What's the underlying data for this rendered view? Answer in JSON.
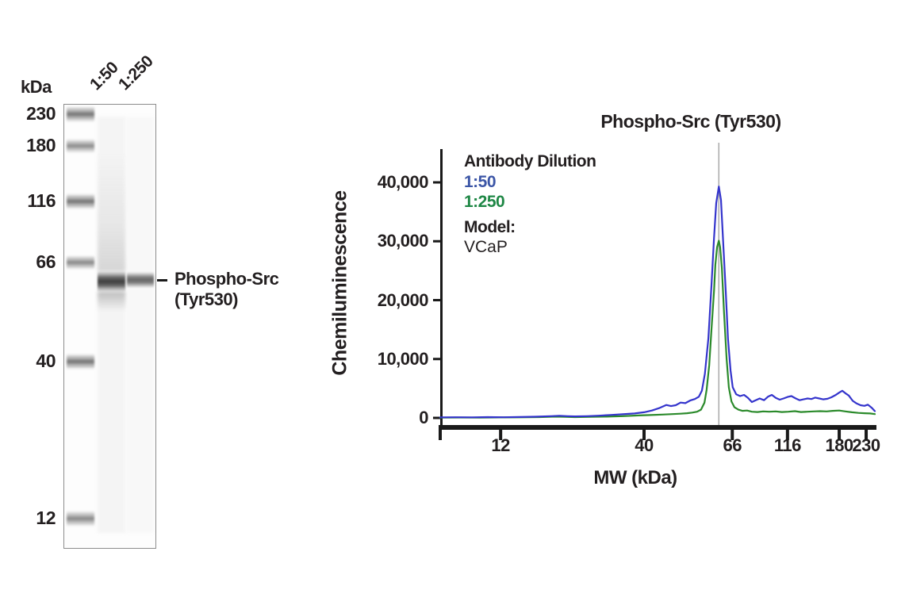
{
  "colors": {
    "text": "#231f20",
    "axis": "#1a1a1a",
    "peak_guide_line": "#ADADAD",
    "blot_border": "#8c8c8c",
    "line_blue": "#3434CC",
    "line_green": "#2B8A2B",
    "legend_blue": "#3B55A6",
    "legend_green": "#1E8745"
  },
  "blot": {
    "kda_heading": "kDa",
    "marker_bands": [
      {
        "label": "230",
        "y": 143,
        "h": 20,
        "shade": 0.7
      },
      {
        "label": "180",
        "y": 183,
        "h": 18,
        "shade": 0.58
      },
      {
        "label": "116",
        "y": 253,
        "h": 20,
        "shade": 0.7
      },
      {
        "label": "66",
        "y": 330,
        "h": 18,
        "shade": 0.6
      },
      {
        "label": "40",
        "y": 455,
        "h": 20,
        "shade": 0.7
      },
      {
        "label": "12",
        "y": 653,
        "h": 20,
        "shade": 0.6
      }
    ],
    "lanes": [
      {
        "label": "1:50",
        "band_y": 354,
        "band_h": 26,
        "shade": 0.88,
        "anchor_x": 126,
        "smear": true
      },
      {
        "label": "1:250",
        "band_y": 352,
        "band_h": 20,
        "shade": 0.7,
        "anchor_x": 162,
        "smear": false
      }
    ],
    "annotation": {
      "line1": "Phospho-Src",
      "line2": "(Tyr530)"
    }
  },
  "chart": {
    "title": "Phospho-Src (Tyr530)",
    "xlabel": "MW (kDa)",
    "ylabel": "Chemiluminescence",
    "legend": {
      "heading": "Antibody Dilution",
      "model_heading": "Model:",
      "model_value": "VCaP"
    }
  },
  "chart_data": {
    "type": "line",
    "title": "Phospho-Src (Tyr530)",
    "xlabel": "MW (kDa)",
    "ylabel": "Chemiluminescence",
    "grid": false,
    "legend_position": "upper-left",
    "x_axis": {
      "type": "nonlinear-position",
      "unit": "kDa",
      "ticks": [
        {
          "label": "12",
          "pos": 0.139
        },
        {
          "label": "40",
          "pos": 0.469
        },
        {
          "label": "66",
          "pos": 0.672
        },
        {
          "label": "116",
          "pos": 0.799
        },
        {
          "label": "180",
          "pos": 0.918
        },
        {
          "label": "230",
          "pos": 0.98
        }
      ]
    },
    "y_axis": {
      "min": 0,
      "max": 46000,
      "ticks": [
        {
          "label": "0",
          "value": 0
        },
        {
          "label": "10,000",
          "value": 10000
        },
        {
          "label": "20,000",
          "value": 20000
        },
        {
          "label": "30,000",
          "value": 30000
        },
        {
          "label": "40,000",
          "value": 40000
        }
      ]
    },
    "peak_line_pos": 0.641,
    "peak_mw_kda": 60,
    "series": [
      {
        "name": "1:50",
        "color": "#3434CC",
        "legend_color": "#3B55A6",
        "peak_value": 39300,
        "points": [
          [
            0,
            100
          ],
          [
            0.036,
            110
          ],
          [
            0.073,
            100
          ],
          [
            0.109,
            130
          ],
          [
            0.146,
            110
          ],
          [
            0.182,
            150
          ],
          [
            0.219,
            200
          ],
          [
            0.255,
            300
          ],
          [
            0.274,
            360
          ],
          [
            0.292,
            300
          ],
          [
            0.31,
            260
          ],
          [
            0.338,
            300
          ],
          [
            0.365,
            380
          ],
          [
            0.392,
            500
          ],
          [
            0.42,
            620
          ],
          [
            0.447,
            760
          ],
          [
            0.469,
            950
          ],
          [
            0.487,
            1250
          ],
          [
            0.505,
            1700
          ],
          [
            0.52,
            2200
          ],
          [
            0.531,
            2000
          ],
          [
            0.542,
            2150
          ],
          [
            0.553,
            2600
          ],
          [
            0.564,
            2500
          ],
          [
            0.575,
            2950
          ],
          [
            0.586,
            3200
          ],
          [
            0.595,
            3600
          ],
          [
            0.602,
            4600
          ],
          [
            0.609,
            7500
          ],
          [
            0.617,
            13500
          ],
          [
            0.624,
            22500
          ],
          [
            0.63,
            30500
          ],
          [
            0.635,
            36500
          ],
          [
            0.641,
            39300
          ],
          [
            0.646,
            37000
          ],
          [
            0.651,
            30000
          ],
          [
            0.657,
            21500
          ],
          [
            0.662,
            13500
          ],
          [
            0.668,
            8000
          ],
          [
            0.673,
            5200
          ],
          [
            0.681,
            4000
          ],
          [
            0.69,
            3700
          ],
          [
            0.699,
            3900
          ],
          [
            0.708,
            3400
          ],
          [
            0.717,
            2700
          ],
          [
            0.726,
            3000
          ],
          [
            0.735,
            3300
          ],
          [
            0.745,
            3000
          ],
          [
            0.754,
            3600
          ],
          [
            0.763,
            3900
          ],
          [
            0.772,
            3400
          ],
          [
            0.781,
            3100
          ],
          [
            0.79,
            3300
          ],
          [
            0.799,
            3550
          ],
          [
            0.808,
            3700
          ],
          [
            0.818,
            3300
          ],
          [
            0.827,
            3000
          ],
          [
            0.836,
            3150
          ],
          [
            0.845,
            3300
          ],
          [
            0.854,
            3200
          ],
          [
            0.863,
            3450
          ],
          [
            0.872,
            3300
          ],
          [
            0.881,
            3150
          ],
          [
            0.891,
            3250
          ],
          [
            0.9,
            3500
          ],
          [
            0.909,
            3850
          ],
          [
            0.918,
            4300
          ],
          [
            0.925,
            4600
          ],
          [
            0.932,
            4200
          ],
          [
            0.94,
            3800
          ],
          [
            0.949,
            2900
          ],
          [
            0.958,
            2450
          ],
          [
            0.967,
            2150
          ],
          [
            0.976,
            2050
          ],
          [
            0.984,
            2250
          ],
          [
            0.993,
            1700
          ],
          [
            1,
            1150
          ]
        ]
      },
      {
        "name": "1:250",
        "color": "#2B8A2B",
        "legend_color": "#1E8745",
        "peak_value": 30100,
        "points": [
          [
            0,
            60
          ],
          [
            0.046,
            70
          ],
          [
            0.091,
            60
          ],
          [
            0.137,
            80
          ],
          [
            0.182,
            90
          ],
          [
            0.228,
            130
          ],
          [
            0.265,
            220
          ],
          [
            0.287,
            170
          ],
          [
            0.31,
            140
          ],
          [
            0.347,
            170
          ],
          [
            0.383,
            220
          ],
          [
            0.42,
            300
          ],
          [
            0.456,
            420
          ],
          [
            0.484,
            480
          ],
          [
            0.511,
            560
          ],
          [
            0.535,
            640
          ],
          [
            0.553,
            720
          ],
          [
            0.568,
            800
          ],
          [
            0.58,
            900
          ],
          [
            0.591,
            1050
          ],
          [
            0.6,
            1400
          ],
          [
            0.608,
            2600
          ],
          [
            0.613,
            4800
          ],
          [
            0.619,
            9000
          ],
          [
            0.624,
            15000
          ],
          [
            0.63,
            21500
          ],
          [
            0.633,
            26000
          ],
          [
            0.637,
            29000
          ],
          [
            0.641,
            30100
          ],
          [
            0.644,
            29000
          ],
          [
            0.648,
            25500
          ],
          [
            0.653,
            18000
          ],
          [
            0.659,
            10000
          ],
          [
            0.664,
            5200
          ],
          [
            0.67,
            2800
          ],
          [
            0.677,
            1800
          ],
          [
            0.686,
            1400
          ],
          [
            0.695,
            1200
          ],
          [
            0.706,
            1250
          ],
          [
            0.717,
            1050
          ],
          [
            0.73,
            1000
          ],
          [
            0.743,
            1100
          ],
          [
            0.757,
            1050
          ],
          [
            0.772,
            1100
          ],
          [
            0.786,
            1000
          ],
          [
            0.801,
            1050
          ],
          [
            0.816,
            1150
          ],
          [
            0.83,
            1000
          ],
          [
            0.845,
            1050
          ],
          [
            0.859,
            1100
          ],
          [
            0.874,
            1150
          ],
          [
            0.889,
            1100
          ],
          [
            0.903,
            1200
          ],
          [
            0.918,
            1250
          ],
          [
            0.932,
            1100
          ],
          [
            0.947,
            950
          ],
          [
            0.962,
            850
          ],
          [
            0.976,
            800
          ],
          [
            0.989,
            750
          ],
          [
            1,
            650
          ]
        ]
      }
    ]
  }
}
